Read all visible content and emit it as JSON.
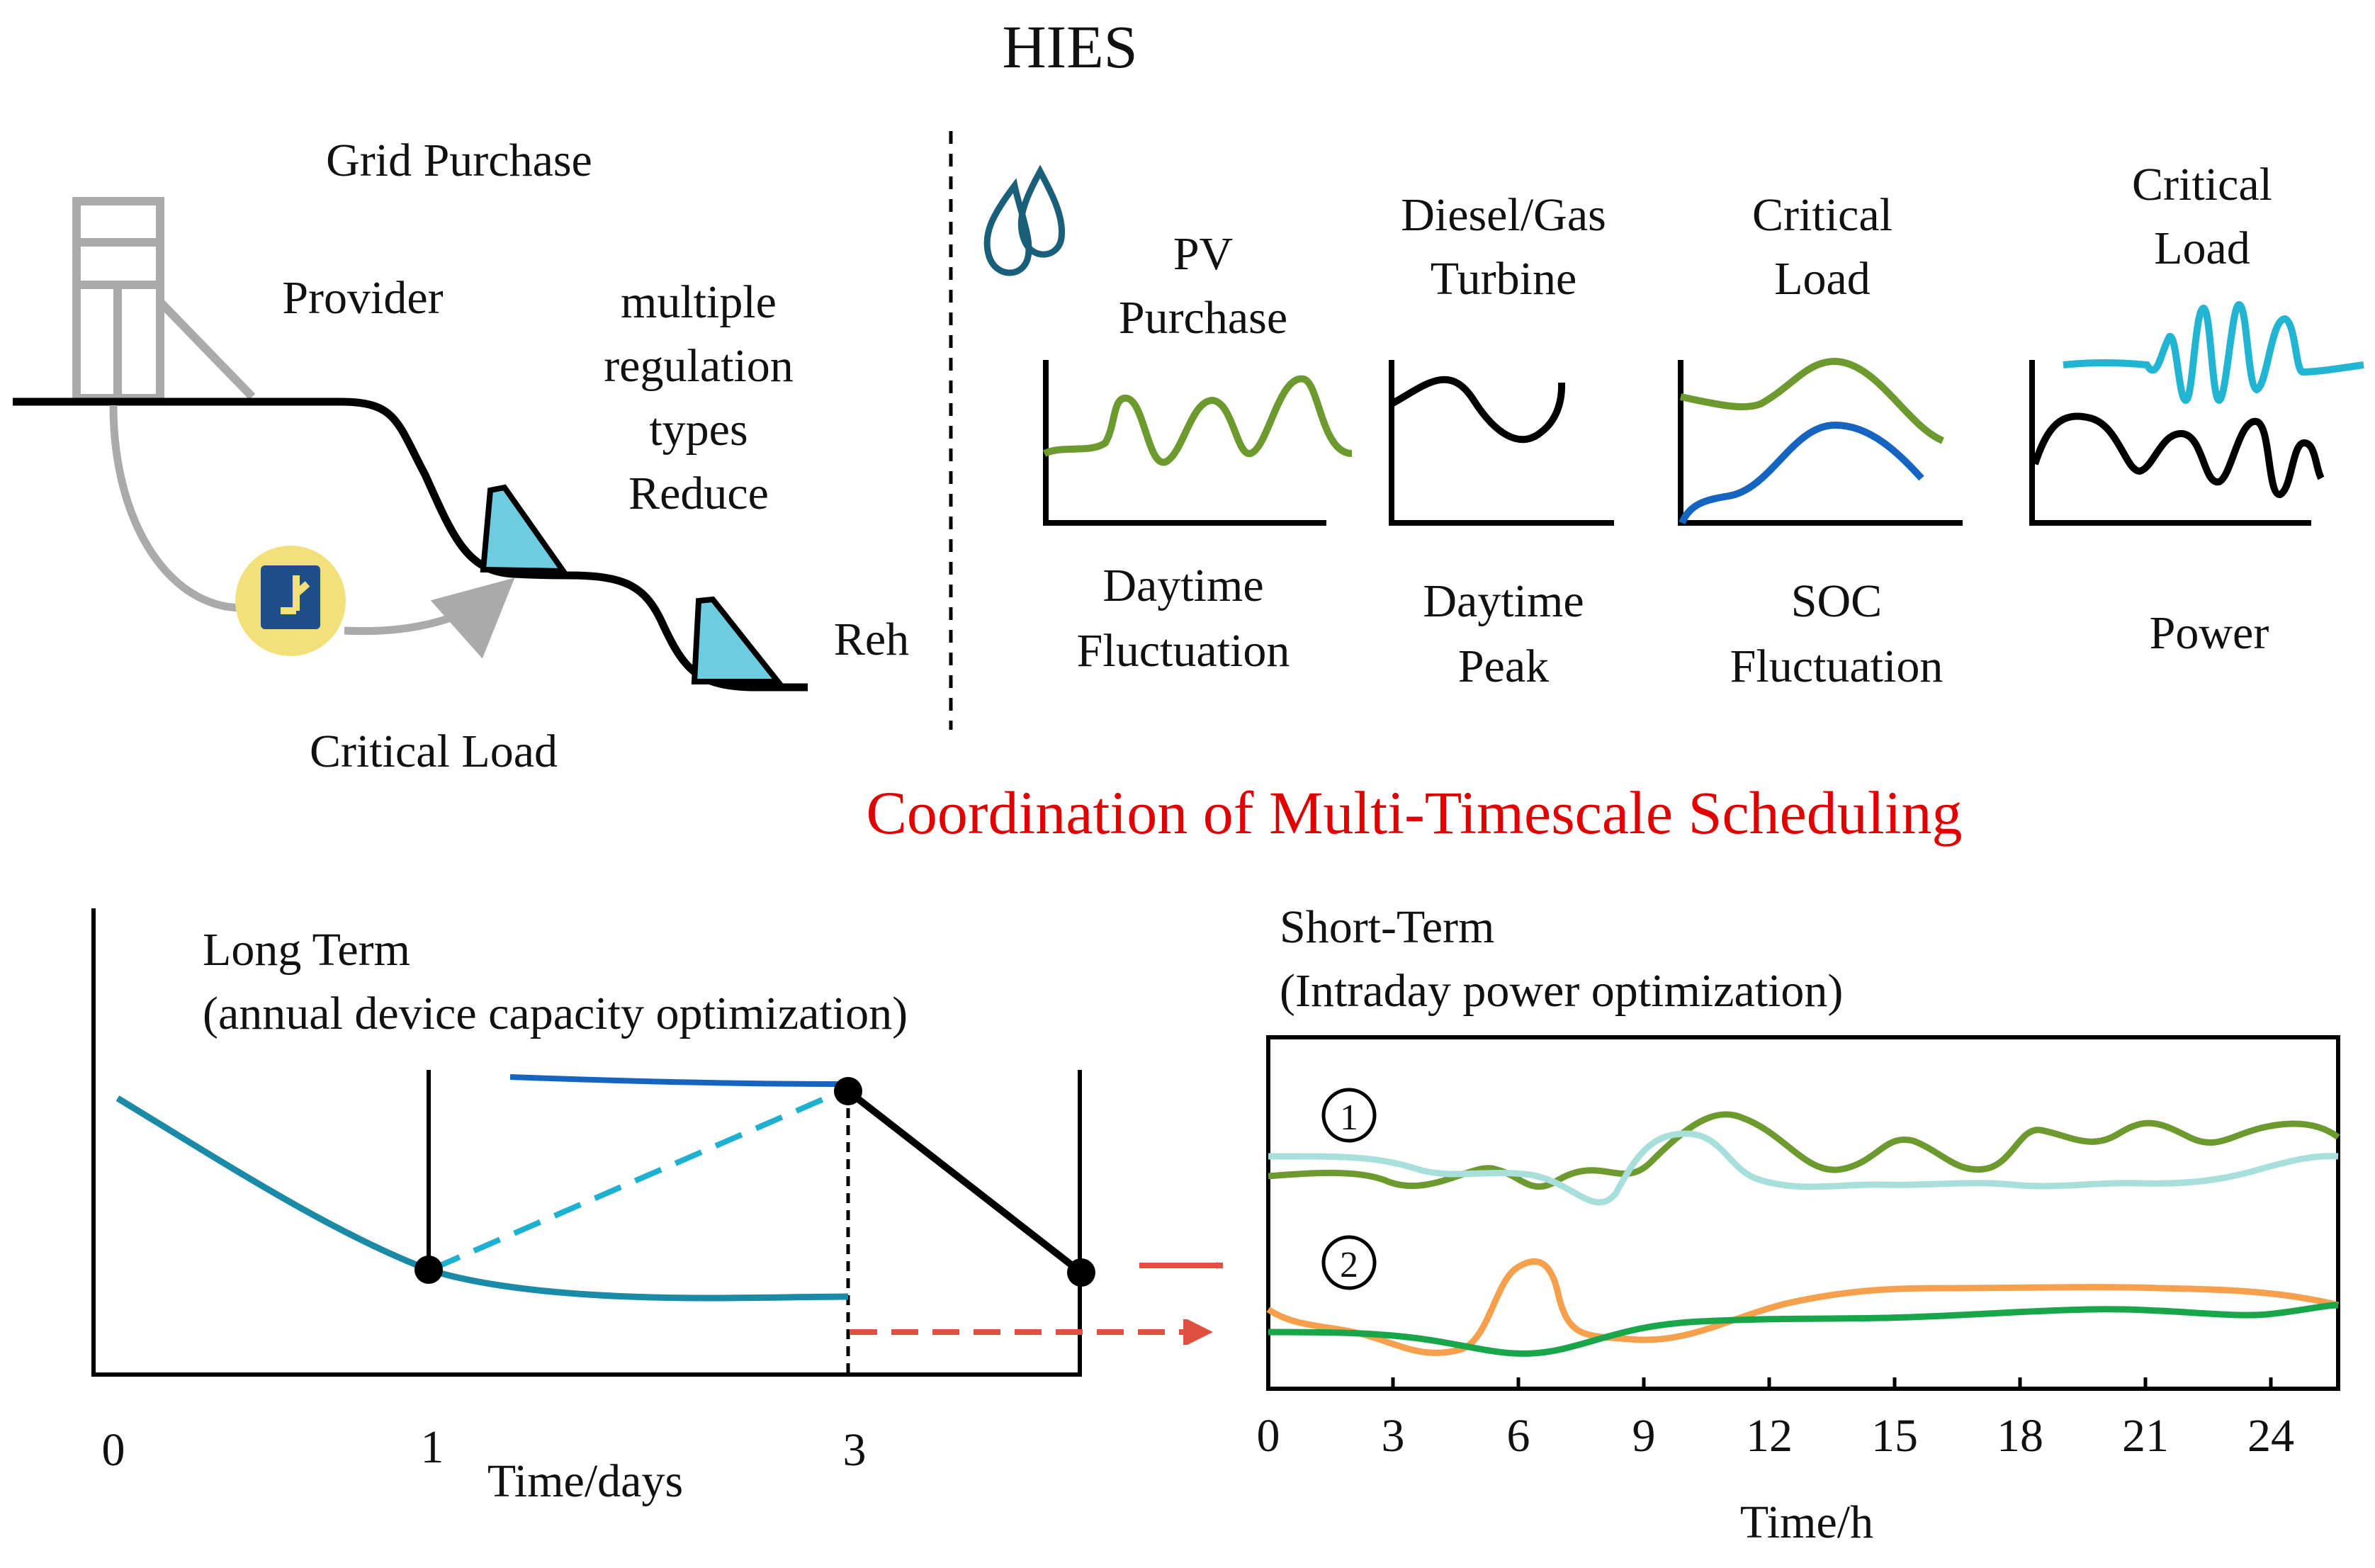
{
  "title": "HIES",
  "top_left": {
    "grid_purchase": "Grid Purchase",
    "provider": "Provider",
    "multiple_lines": [
      "multiple",
      "regulation",
      "types",
      "Reduce"
    ],
    "reh": "Reh",
    "critical_load": "Critical Load"
  },
  "panels": [
    {
      "top": [
        "PV",
        "Purchase"
      ],
      "bottom": [
        "Daytime",
        "Fluctuation"
      ]
    },
    {
      "top": [
        "Diesel/Gas",
        "Turbine"
      ],
      "bottom": [
        "Daytime",
        "Peak"
      ]
    },
    {
      "top": [
        "Critical",
        "Load"
      ],
      "bottom": [
        "SOC",
        "Fluctuation"
      ]
    },
    {
      "top": [
        "Critical",
        "Load"
      ],
      "bottom": [
        "Power"
      ]
    }
  ],
  "coordination_title": "Coordination of Multi-Timescale Scheduling",
  "long_term": {
    "title": "Long Term",
    "subtitle": "(annual device capacity optimization)",
    "x_ticks": [
      "0",
      "1",
      "3"
    ],
    "x_label": "Time/days"
  },
  "short_term": {
    "title": "Short-Term",
    "subtitle": "(Intraday power optimization)",
    "marker_1": "1",
    "marker_2": "2",
    "x_ticks": [
      "0",
      "3",
      "6",
      "9",
      "12",
      "15",
      "18",
      "21",
      "24"
    ],
    "x_label": "Time/h"
  },
  "colors": {
    "title_red": "#e00000",
    "teal": "#1a8aa6",
    "light_blue": "#1db0d0",
    "blue": "#1565c0",
    "olive_green": "#6d9a2f",
    "light_cyan": "#a8dfda",
    "orange": "#f6a04d",
    "green": "#19a64a",
    "panel_cyan": "#21b5d3",
    "red_arrow": "#e05040",
    "gray": "#aaaaaa",
    "turbine_fill": "#6dccdf",
    "badge_yellow": "#f2e07a",
    "badge_blue": "#1f4f8a"
  }
}
